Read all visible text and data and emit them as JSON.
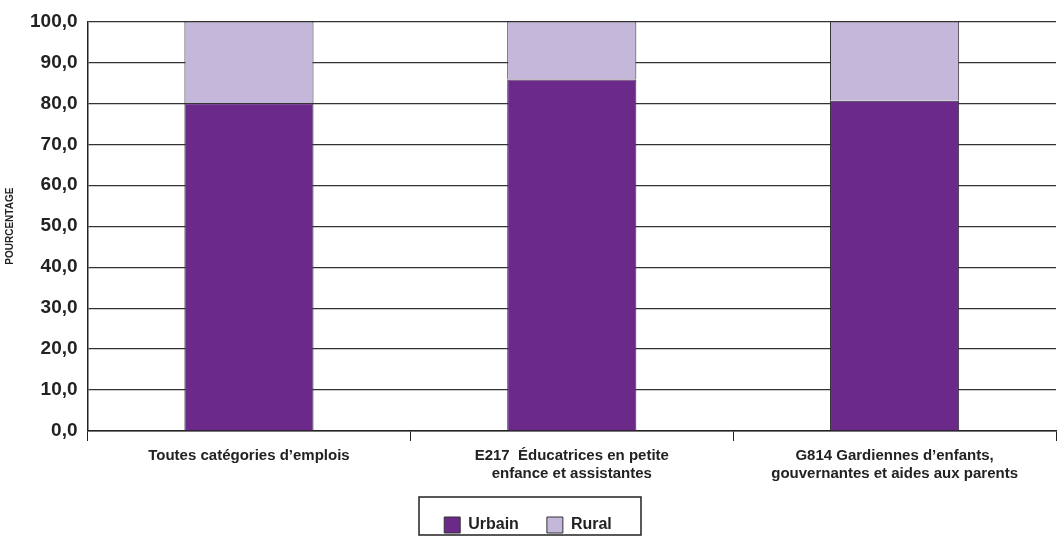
{
  "chart_data": {
    "type": "bar",
    "stacked": true,
    "ylabel": "POURCENTAGE",
    "categories": [
      "Toutes catégories d’emplois",
      "E217  Éducatrices en petite enfance et assistantes",
      "G814 Gardiennes d’enfants, gouvernantes et aides aux parents"
    ],
    "series": [
      {
        "name": "Urbain",
        "color": "#6b2a8a",
        "values": [
          80.0,
          85.8,
          80.6
        ]
      },
      {
        "name": "Rural",
        "color": "#c5b7d9",
        "values": [
          20.0,
          14.2,
          19.4
        ]
      }
    ],
    "ylim": [
      0,
      100
    ],
    "yticks": [
      {
        "value": 0,
        "label": "0,0"
      },
      {
        "value": 10,
        "label": "10,0"
      },
      {
        "value": 20,
        "label": "20,0"
      },
      {
        "value": 30,
        "label": "30,0"
      },
      {
        "value": 40,
        "label": "40,0"
      },
      {
        "value": 50,
        "label": "50,0"
      },
      {
        "value": 60,
        "label": "60,0"
      },
      {
        "value": 70,
        "label": "70,0"
      },
      {
        "value": 80,
        "label": "80,0"
      },
      {
        "value": 90,
        "label": "90,0"
      },
      {
        "value": 100,
        "label": "100,0"
      }
    ],
    "grid": "y",
    "legend": "bottom"
  }
}
